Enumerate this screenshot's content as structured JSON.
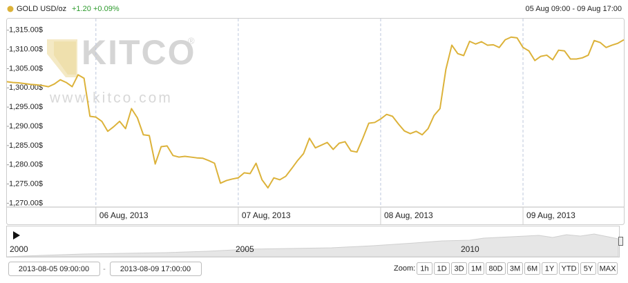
{
  "chart_data": {
    "type": "line",
    "series": [
      {
        "name": "GOLD USD/oz",
        "color": "#dcb239",
        "values": [
          1301.6,
          1301.4,
          1301.3,
          1301.1,
          1300.9,
          1300.8,
          1300.6,
          1300.3,
          1301.0,
          1302.1,
          1301.4,
          1300.3,
          1303.4,
          1302.5,
          1292.6,
          1292.4,
          1291.3,
          1288.7,
          1289.9,
          1291.3,
          1289.4,
          1294.6,
          1292.2,
          1287.8,
          1287.6,
          1280.2,
          1284.7,
          1284.9,
          1282.4,
          1282.0,
          1282.2,
          1282.0,
          1281.8,
          1281.7,
          1281.1,
          1280.4,
          1275.2,
          1275.9,
          1276.3,
          1276.6,
          1277.9,
          1277.7,
          1280.4,
          1276.1,
          1274.0,
          1276.6,
          1276.1,
          1277.0,
          1279.0,
          1281.1,
          1282.9,
          1286.9,
          1284.4,
          1285.1,
          1285.8,
          1284.0,
          1285.6,
          1286.0,
          1283.6,
          1283.3,
          1286.9,
          1290.8,
          1291.0,
          1291.9,
          1293.1,
          1292.6,
          1290.6,
          1288.8,
          1288.1,
          1288.7,
          1287.8,
          1289.4,
          1292.8,
          1294.6,
          1304.8,
          1311.1,
          1308.9,
          1308.4,
          1312.1,
          1311.4,
          1312.0,
          1311.1,
          1311.2,
          1310.5,
          1312.5,
          1313.2,
          1313.0,
          1310.5,
          1309.6,
          1307.1,
          1308.2,
          1308.5,
          1307.3,
          1309.8,
          1309.6,
          1307.5,
          1307.5,
          1307.8,
          1308.5,
          1312.3,
          1311.8,
          1310.5,
          1311.1,
          1311.6,
          1312.5
        ]
      }
    ],
    "categories": [
      null,
      null,
      null,
      null,
      null,
      null,
      null,
      null,
      null,
      null,
      null,
      null,
      null,
      null,
      null,
      "06 Aug, 2013",
      null,
      null,
      null,
      null,
      null,
      null,
      null,
      null,
      null,
      null,
      null,
      null,
      null,
      null,
      null,
      null,
      null,
      null,
      null,
      null,
      null,
      null,
      null,
      "07 Aug, 2013",
      null,
      null,
      null,
      null,
      null,
      null,
      null,
      null,
      null,
      null,
      null,
      null,
      null,
      null,
      null,
      null,
      null,
      null,
      null,
      null,
      null,
      null,
      null,
      "08 Aug, 2013",
      null,
      null,
      null,
      null,
      null,
      null,
      null,
      null,
      null,
      null,
      null,
      null,
      null,
      null,
      null,
      null,
      null,
      null,
      null,
      null,
      null,
      null,
      null,
      "09 Aug, 2013",
      null,
      null,
      null,
      null,
      null,
      null,
      null,
      null,
      null,
      null,
      null,
      null,
      null,
      null,
      null,
      null,
      null
    ],
    "ylim": [
      1269,
      1318
    ],
    "yticks": [
      {
        "value": 1270,
        "label": "1,270.00$"
      },
      {
        "value": 1275,
        "label": "1,275.00$"
      },
      {
        "value": 1280,
        "label": "1,280.00$"
      },
      {
        "value": 1285,
        "label": "1,285.00$"
      },
      {
        "value": 1290,
        "label": "1,290.00$"
      },
      {
        "value": 1295,
        "label": "1,295.00$"
      },
      {
        "value": 1300,
        "label": "1,300.00$"
      },
      {
        "value": 1305,
        "label": "1,305.00$"
      },
      {
        "value": 1310,
        "label": "1,310.00$"
      },
      {
        "value": 1315,
        "label": "1,315.00$"
      }
    ],
    "grid": false,
    "xgrid": true
  },
  "header": {
    "change": "+1.20",
    "change_pct": "+0.09%",
    "range": "05 Aug 09:00 - 09 Aug 17:00"
  },
  "watermark": {
    "brand": "KITCO",
    "mark": "®",
    "url": "www.kitco.com"
  },
  "navigator": {
    "labels": [
      "2000",
      "2005",
      "2010"
    ]
  },
  "controls": {
    "from": "2013-08-05 09:00:00",
    "separator": "-",
    "to": "2013-08-09 17:00:00",
    "zoom_label": "Zoom:",
    "zoom": [
      "1h",
      "1D",
      "3D",
      "1M",
      "80D",
      "3M",
      "6M",
      "1Y",
      "YTD",
      "5Y",
      "MAX"
    ]
  }
}
